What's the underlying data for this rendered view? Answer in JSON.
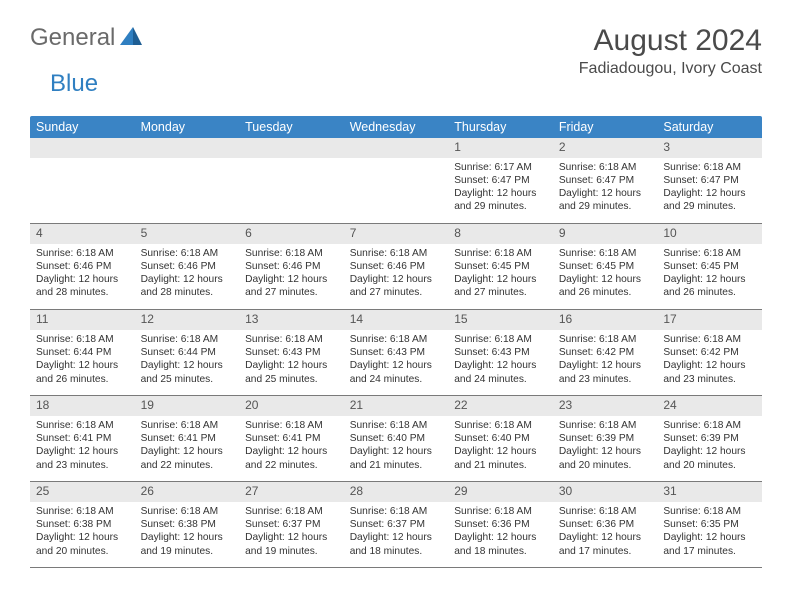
{
  "logo": {
    "word1": "General",
    "word2": "Blue",
    "color1": "#6a6a6a",
    "color2": "#2f7fc1"
  },
  "title": "August 2024",
  "location": "Fadiadougou, Ivory Coast",
  "header_bg": "#3a84c5",
  "daynum_bg": "#e9e9e9",
  "days": [
    "Sunday",
    "Monday",
    "Tuesday",
    "Wednesday",
    "Thursday",
    "Friday",
    "Saturday"
  ],
  "weeks": [
    [
      null,
      null,
      null,
      null,
      {
        "n": "1",
        "sr": "6:17 AM",
        "ss": "6:47 PM",
        "dl": "12 hours and 29 minutes."
      },
      {
        "n": "2",
        "sr": "6:18 AM",
        "ss": "6:47 PM",
        "dl": "12 hours and 29 minutes."
      },
      {
        "n": "3",
        "sr": "6:18 AM",
        "ss": "6:47 PM",
        "dl": "12 hours and 29 minutes."
      }
    ],
    [
      {
        "n": "4",
        "sr": "6:18 AM",
        "ss": "6:46 PM",
        "dl": "12 hours and 28 minutes."
      },
      {
        "n": "5",
        "sr": "6:18 AM",
        "ss": "6:46 PM",
        "dl": "12 hours and 28 minutes."
      },
      {
        "n": "6",
        "sr": "6:18 AM",
        "ss": "6:46 PM",
        "dl": "12 hours and 27 minutes."
      },
      {
        "n": "7",
        "sr": "6:18 AM",
        "ss": "6:46 PM",
        "dl": "12 hours and 27 minutes."
      },
      {
        "n": "8",
        "sr": "6:18 AM",
        "ss": "6:45 PM",
        "dl": "12 hours and 27 minutes."
      },
      {
        "n": "9",
        "sr": "6:18 AM",
        "ss": "6:45 PM",
        "dl": "12 hours and 26 minutes."
      },
      {
        "n": "10",
        "sr": "6:18 AM",
        "ss": "6:45 PM",
        "dl": "12 hours and 26 minutes."
      }
    ],
    [
      {
        "n": "11",
        "sr": "6:18 AM",
        "ss": "6:44 PM",
        "dl": "12 hours and 26 minutes."
      },
      {
        "n": "12",
        "sr": "6:18 AM",
        "ss": "6:44 PM",
        "dl": "12 hours and 25 minutes."
      },
      {
        "n": "13",
        "sr": "6:18 AM",
        "ss": "6:43 PM",
        "dl": "12 hours and 25 minutes."
      },
      {
        "n": "14",
        "sr": "6:18 AM",
        "ss": "6:43 PM",
        "dl": "12 hours and 24 minutes."
      },
      {
        "n": "15",
        "sr": "6:18 AM",
        "ss": "6:43 PM",
        "dl": "12 hours and 24 minutes."
      },
      {
        "n": "16",
        "sr": "6:18 AM",
        "ss": "6:42 PM",
        "dl": "12 hours and 23 minutes."
      },
      {
        "n": "17",
        "sr": "6:18 AM",
        "ss": "6:42 PM",
        "dl": "12 hours and 23 minutes."
      }
    ],
    [
      {
        "n": "18",
        "sr": "6:18 AM",
        "ss": "6:41 PM",
        "dl": "12 hours and 23 minutes."
      },
      {
        "n": "19",
        "sr": "6:18 AM",
        "ss": "6:41 PM",
        "dl": "12 hours and 22 minutes."
      },
      {
        "n": "20",
        "sr": "6:18 AM",
        "ss": "6:41 PM",
        "dl": "12 hours and 22 minutes."
      },
      {
        "n": "21",
        "sr": "6:18 AM",
        "ss": "6:40 PM",
        "dl": "12 hours and 21 minutes."
      },
      {
        "n": "22",
        "sr": "6:18 AM",
        "ss": "6:40 PM",
        "dl": "12 hours and 21 minutes."
      },
      {
        "n": "23",
        "sr": "6:18 AM",
        "ss": "6:39 PM",
        "dl": "12 hours and 20 minutes."
      },
      {
        "n": "24",
        "sr": "6:18 AM",
        "ss": "6:39 PM",
        "dl": "12 hours and 20 minutes."
      }
    ],
    [
      {
        "n": "25",
        "sr": "6:18 AM",
        "ss": "6:38 PM",
        "dl": "12 hours and 20 minutes."
      },
      {
        "n": "26",
        "sr": "6:18 AM",
        "ss": "6:38 PM",
        "dl": "12 hours and 19 minutes."
      },
      {
        "n": "27",
        "sr": "6:18 AM",
        "ss": "6:37 PM",
        "dl": "12 hours and 19 minutes."
      },
      {
        "n": "28",
        "sr": "6:18 AM",
        "ss": "6:37 PM",
        "dl": "12 hours and 18 minutes."
      },
      {
        "n": "29",
        "sr": "6:18 AM",
        "ss": "6:36 PM",
        "dl": "12 hours and 18 minutes."
      },
      {
        "n": "30",
        "sr": "6:18 AM",
        "ss": "6:36 PM",
        "dl": "12 hours and 17 minutes."
      },
      {
        "n": "31",
        "sr": "6:18 AM",
        "ss": "6:35 PM",
        "dl": "12 hours and 17 minutes."
      }
    ]
  ],
  "labels": {
    "sunrise": "Sunrise: ",
    "sunset": "Sunset: ",
    "daylight": "Daylight: "
  }
}
